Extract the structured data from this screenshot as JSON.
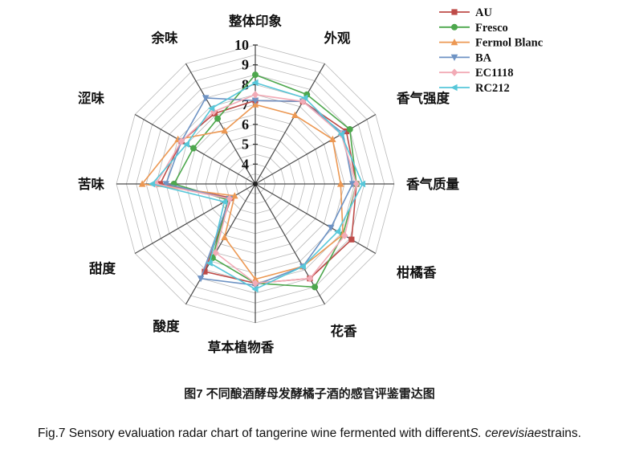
{
  "figure": {
    "caption_zh": "图7 不同酿酒酵母发酵橘子酒的感官评鉴雷达图",
    "caption_en_prefix": "Fig.7 Sensory evaluation radar chart of tangerine wine fermented with different",
    "caption_en_italic": "S. cerevisiae",
    "caption_en_suffix": "strains."
  },
  "chart_data": {
    "type": "radar",
    "categories": [
      "整体印象",
      "外观",
      "香气强度",
      "香气质量",
      "柑橘香",
      "花香",
      "草本植物香",
      "酸度",
      "甜度",
      "苦味",
      "涩味",
      "余味"
    ],
    "radial_axis": {
      "min": 3,
      "max": 10,
      "tick_labels": [
        "4",
        "5",
        "6",
        "7",
        "8",
        "9",
        "10"
      ],
      "grid_step": 0.5
    },
    "grid": true,
    "legend_position": "top-right",
    "series": [
      {
        "name": "AU",
        "color": "#BE4B48",
        "marker": "square",
        "values": [
          7.2,
          7.8,
          8.3,
          8.1,
          8.6,
          8.5,
          8.0,
          8.1,
          4.4,
          7.8,
          7.3,
          7.1
        ]
      },
      {
        "name": "Fresco",
        "color": "#4DA74D",
        "marker": "circle",
        "values": [
          8.5,
          8.2,
          8.5,
          8.1,
          8.1,
          9.0,
          8.0,
          7.3,
          4.6,
          7.1,
          6.6,
          6.8
        ]
      },
      {
        "name": "Fermol Blanc",
        "color": "#EC9853",
        "marker": "triangle-up",
        "values": [
          7.0,
          7.0,
          7.5,
          7.3,
          8.1,
          7.8,
          7.8,
          6.1,
          4.2,
          8.7,
          7.5,
          6.1
        ]
      },
      {
        "name": "BA",
        "color": "#6E93C4",
        "marker": "triangle-down",
        "values": [
          7.2,
          7.8,
          8.1,
          7.9,
          7.4,
          7.8,
          8.1,
          8.5,
          4.5,
          7.5,
          7.3,
          8.0
        ]
      },
      {
        "name": "EC1118",
        "color": "#F2ABB6",
        "marker": "diamond",
        "values": [
          7.5,
          7.8,
          8.0,
          8.1,
          8.2,
          8.5,
          8.0,
          7.0,
          4.5,
          8.0,
          7.3,
          7.2
        ]
      },
      {
        "name": "RC212",
        "color": "#57C7D9",
        "marker": "triangle-left",
        "values": [
          8.1,
          8.0,
          8.0,
          8.4,
          7.8,
          7.8,
          8.3,
          7.6,
          4.8,
          8.2,
          7.0,
          7.4
        ]
      }
    ]
  }
}
